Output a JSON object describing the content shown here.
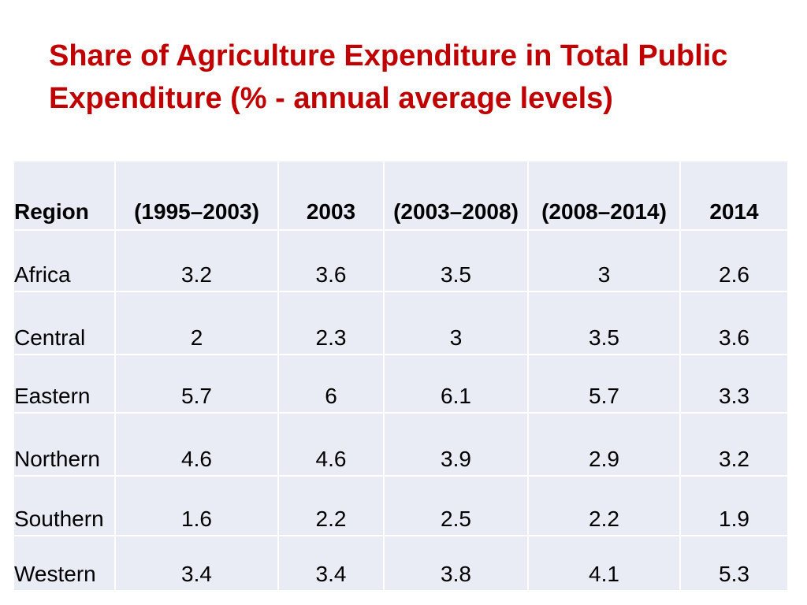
{
  "title": "Share of Agriculture Expenditure in Total Public Expenditure (% - annual average levels)",
  "table": {
    "headers": [
      "Region",
      "(1995–2003)",
      "2003",
      "(2003–2008)",
      "(2008–2014)",
      "2014"
    ],
    "rows": [
      {
        "region": "Africa",
        "values": [
          "3.2",
          "3.6",
          "3.5",
          "3",
          "2.6"
        ]
      },
      {
        "region": "Central",
        "values": [
          "2",
          "2.3",
          "3",
          "3.5",
          "3.6"
        ]
      },
      {
        "region": "Eastern",
        "values": [
          "5.7",
          "6",
          "6.1",
          "5.7",
          "3.3"
        ]
      },
      {
        "region": "Northern",
        "values": [
          "4.6",
          "4.6",
          "3.9",
          "2.9",
          "3.2"
        ]
      },
      {
        "region": "Southern",
        "values": [
          "1.6",
          "2.2",
          "2.5",
          "2.2",
          "1.9"
        ]
      },
      {
        "region": "Western",
        "values": [
          "3.4",
          "3.4",
          "3.8",
          "4.1",
          "5.3"
        ]
      }
    ]
  },
  "colors": {
    "title": "#c00000",
    "table_fill": "#e9ebf5",
    "table_border": "#ffffff"
  }
}
